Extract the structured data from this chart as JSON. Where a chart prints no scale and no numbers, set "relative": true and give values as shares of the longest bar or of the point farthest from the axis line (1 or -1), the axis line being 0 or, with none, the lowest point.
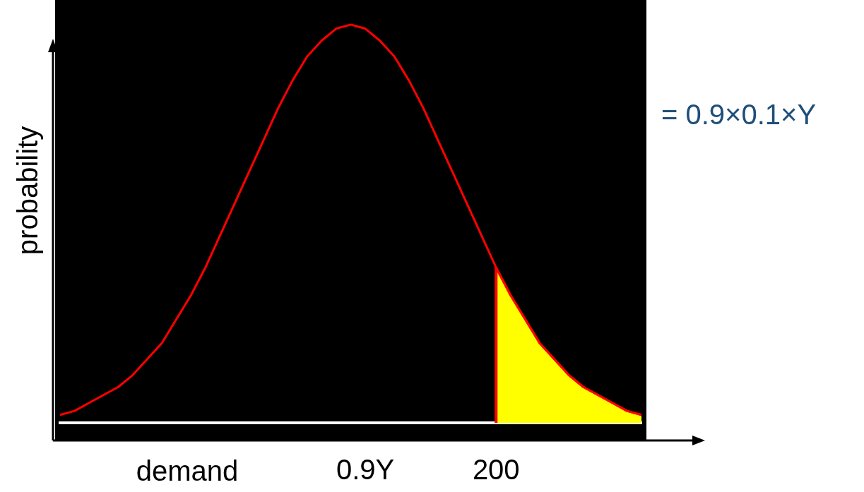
{
  "chart_data": {
    "type": "line",
    "relative": true,
    "xlabel": "demand",
    "ylabel": "probability",
    "marker": "none",
    "grid": false,
    "legend": false,
    "tick_labels": "x",
    "categories": [
      null,
      null,
      null,
      null,
      null,
      null,
      null,
      null,
      null,
      null,
      null,
      null,
      null,
      null,
      null,
      null,
      null,
      null,
      null,
      null,
      null,
      "0.9Y",
      null,
      null,
      null,
      null,
      null,
      null,
      null,
      null,
      "200",
      null,
      null,
      null,
      null,
      null,
      null,
      null,
      null,
      null,
      null
    ],
    "series": [
      {
        "type": "line",
        "color": "#ff0000",
        "values": [
          0.02,
          0.03,
          0.05,
          0.07,
          0.09,
          0.12,
          0.16,
          0.2,
          0.26,
          0.32,
          0.39,
          0.47,
          0.55,
          0.63,
          0.71,
          0.79,
          0.86,
          0.92,
          0.96,
          0.99,
          1,
          0.99,
          0.96,
          0.92,
          0.86,
          0.79,
          0.71,
          0.63,
          0.55,
          0.47,
          0.39,
          0.32,
          0.26,
          0.2,
          0.16,
          0.12,
          0.09,
          0.07,
          0.05,
          0.03,
          0.02
        ]
      },
      {
        "type": "area",
        "color": "#ffff00",
        "values": [
          null,
          null,
          null,
          null,
          null,
          null,
          null,
          null,
          null,
          null,
          null,
          null,
          null,
          null,
          null,
          null,
          null,
          null,
          null,
          null,
          null,
          null,
          null,
          null,
          null,
          null,
          null,
          null,
          null,
          null,
          0.39,
          0.32,
          0.26,
          0.2,
          0.16,
          0.12,
          0.09,
          0.07,
          0.05,
          0.03,
          0.02
        ]
      }
    ],
    "ref_lines": [
      {
        "axis": "x",
        "value": "200",
        "color": "#ff0000"
      }
    ],
    "annotations": [
      "= 0.9×0.1×Y"
    ]
  }
}
